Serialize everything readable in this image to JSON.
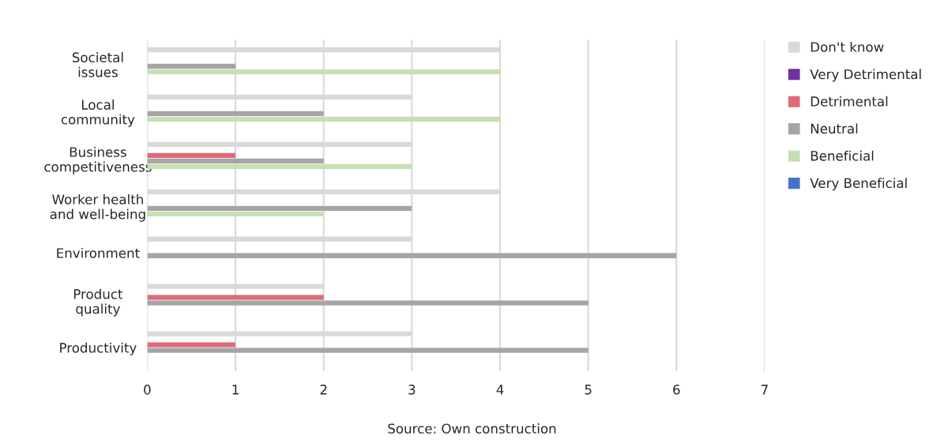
{
  "chart_data": {
    "type": "bar",
    "orientation": "horizontal",
    "categories": [
      "Societal\nissues",
      "Local\ncommunity",
      "Business\ncompetitiveness",
      "Worker health\nand well-being",
      "Environment",
      "Product\nquality",
      "Productivity"
    ],
    "series": [
      {
        "name": "Don't know",
        "color": "#d9d9d9",
        "values": [
          4,
          3,
          3,
          4,
          3,
          2,
          3
        ]
      },
      {
        "name": "Very Detrimental",
        "color": "#7030a0",
        "values": [
          0,
          0,
          0,
          0,
          0,
          0,
          0
        ]
      },
      {
        "name": "Detrimental",
        "color": "#e06b78",
        "values": [
          0,
          0,
          1,
          0,
          0,
          2,
          1
        ]
      },
      {
        "name": "Neutral",
        "color": "#a5a5a5",
        "values": [
          1,
          2,
          2,
          3,
          6,
          5,
          5
        ]
      },
      {
        "name": "Beneficial",
        "color": "#c5e0b4",
        "values": [
          4,
          4,
          3,
          2,
          0,
          0,
          0
        ]
      },
      {
        "name": "Very Beneficial",
        "color": "#4472c4",
        "values": [
          0,
          0,
          0,
          0,
          0,
          0,
          0
        ]
      }
    ],
    "xlim": [
      0,
      7
    ],
    "xticks": [
      0,
      1,
      2,
      3,
      4,
      5,
      6,
      7
    ],
    "grid": "x",
    "legend": "right",
    "annotations": [
      "Source: Own construction"
    ]
  }
}
